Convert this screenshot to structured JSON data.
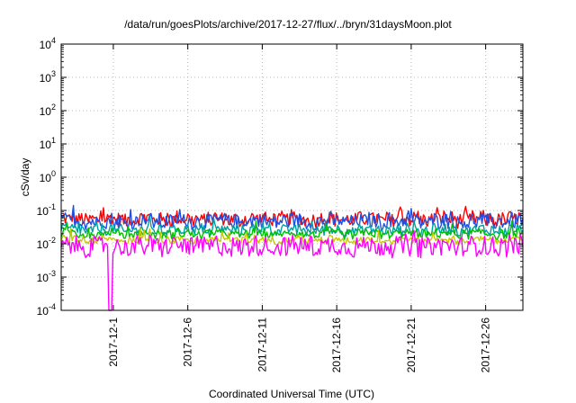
{
  "chart_data": {
    "type": "line",
    "title": "/data/run/goesPlots/archive/2017-12-27/flux/../bryn/31daysMoon.plot",
    "xlabel": "Coordinated Universal Time (UTC)",
    "ylabel": "cSv/day",
    "y_scale": "log",
    "ylim": [
      0.0001,
      10000
    ],
    "xlim": [
      "2017-11-27T12:00",
      "2017-12-28T12:00"
    ],
    "grid": true,
    "y_ticks": [
      {
        "value": 0.0001,
        "base": "10",
        "exp": "-4"
      },
      {
        "value": 0.001,
        "base": "10",
        "exp": "-3"
      },
      {
        "value": 0.01,
        "base": "10",
        "exp": "-2"
      },
      {
        "value": 0.1,
        "base": "10",
        "exp": "-1"
      },
      {
        "value": 1,
        "base": "10",
        "exp": "0"
      },
      {
        "value": 10,
        "base": "10",
        "exp": "1"
      },
      {
        "value": 100,
        "base": "10",
        "exp": "2"
      },
      {
        "value": 1000,
        "base": "10",
        "exp": "3"
      },
      {
        "value": 10000,
        "base": "10",
        "exp": "4"
      }
    ],
    "x_ticks": [
      {
        "value": "2017-12-01",
        "label": "2017-12-1"
      },
      {
        "value": "2017-12-06",
        "label": "2017-12-6"
      },
      {
        "value": "2017-12-11",
        "label": "2017-12-11"
      },
      {
        "value": "2017-12-16",
        "label": "2017-12-16"
      },
      {
        "value": "2017-12-21",
        "label": "2017-12-21"
      },
      {
        "value": "2017-12-26",
        "label": "2017-12-26"
      }
    ],
    "series": [
      {
        "color": "#ff0000",
        "level": 0.055,
        "spread": 0.22
      },
      {
        "color": "#1f4fe0",
        "level": 0.048,
        "spread": 0.22
      },
      {
        "color": "#00a0a0",
        "level": 0.026,
        "spread": 0.15
      },
      {
        "color": "#00c000",
        "level": 0.02,
        "spread": 0.12
      },
      {
        "color": "#c8c800",
        "level": 0.013,
        "spread": 0.1
      },
      {
        "color": "#ff00ff",
        "level": 0.0085,
        "spread": 0.3
      }
    ],
    "dip": {
      "series_color": "#ff00ff",
      "x": "2017-11-30T18:00",
      "value": 0.0001
    }
  }
}
